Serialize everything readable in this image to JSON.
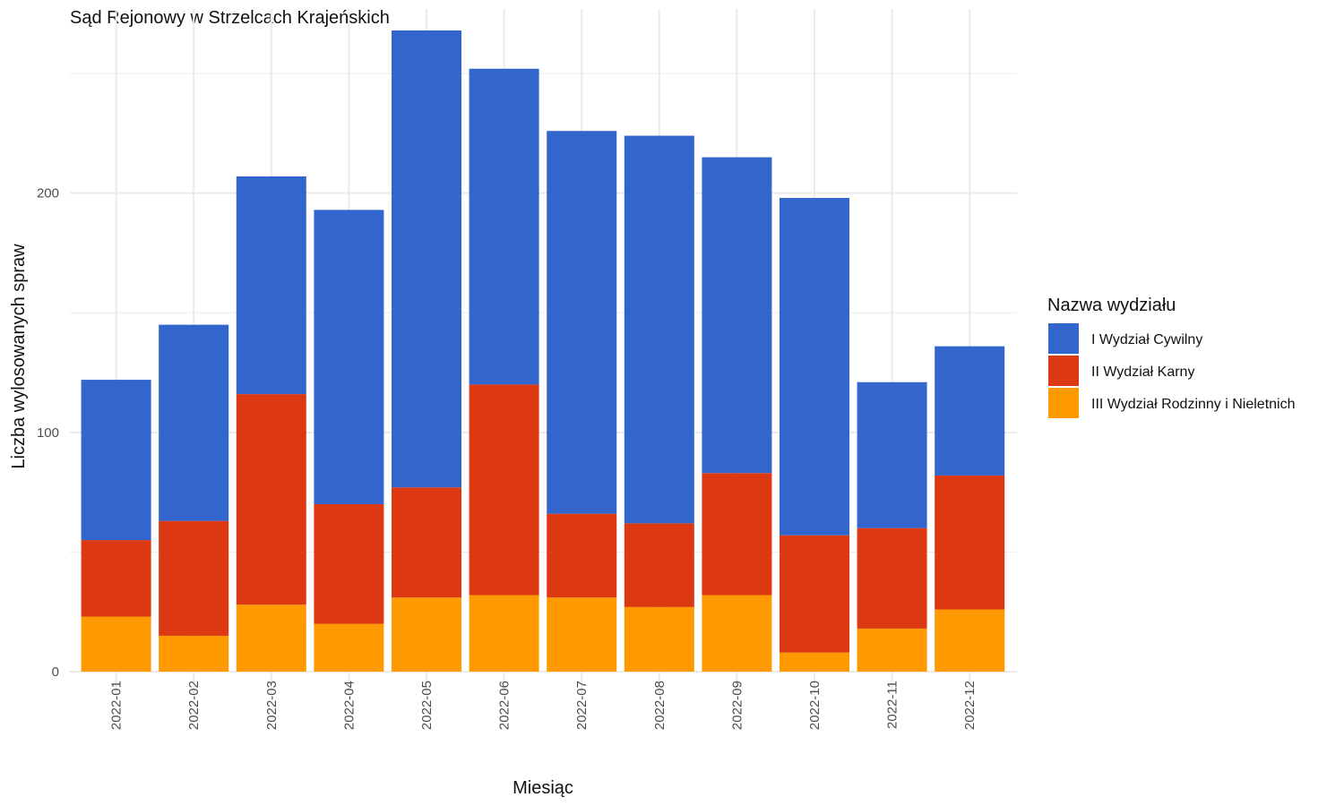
{
  "chart_data": {
    "type": "bar",
    "stacked": true,
    "title": "Sąd Rejonowy w Strzelcach Krajeńskich",
    "xlabel": "Miesiąc",
    "ylabel": "Liczba wylosowanych spraw",
    "ylim": [
      0,
      268
    ],
    "yticks": [
      0,
      100,
      200
    ],
    "grid": true,
    "categories": [
      "2022-01",
      "2022-02",
      "2022-03",
      "2022-04",
      "2022-05",
      "2022-06",
      "2022-07",
      "2022-08",
      "2022-09",
      "2022-10",
      "2022-11",
      "2022-12"
    ],
    "legend": {
      "title": "Nazwa wydziału",
      "placement": "right"
    },
    "series": [
      {
        "name": "III Wydział Rodzinny i Nieletnich",
        "color": "#FF9900",
        "values": [
          23,
          15,
          28,
          20,
          31,
          32,
          31,
          27,
          32,
          8,
          18,
          26
        ]
      },
      {
        "name": "II Wydział Karny",
        "color": "#DC3912",
        "values": [
          32,
          48,
          88,
          50,
          46,
          88,
          35,
          35,
          51,
          49,
          42,
          56
        ]
      },
      {
        "name": "I Wydział Cywilny",
        "color": "#3366CC",
        "values": [
          67,
          82,
          91,
          123,
          191,
          132,
          160,
          162,
          132,
          141,
          61,
          54
        ]
      }
    ],
    "legend_order": [
      "I Wydział Cywilny",
      "II Wydział Karny",
      "III Wydział Rodzinny i Nieletnich"
    ]
  }
}
